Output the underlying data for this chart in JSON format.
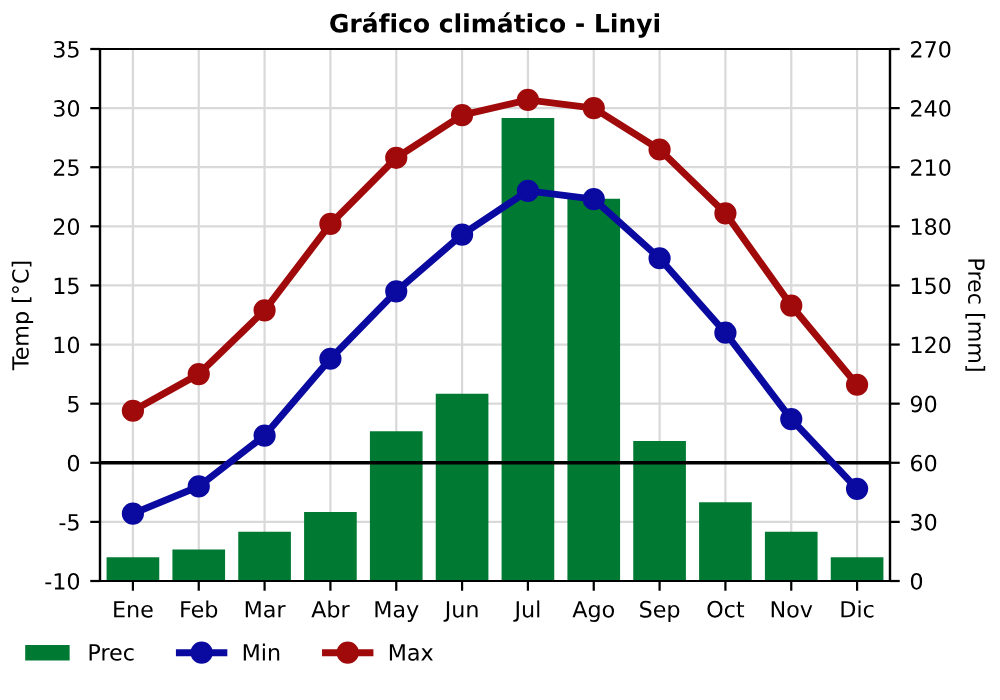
{
  "chart_data": {
    "type": "line",
    "title": "Gráfico climático - Linyi",
    "ylabel": "Temp [°C]",
    "y2label": "Prec [mm]",
    "categories": [
      "Ene",
      "Feb",
      "Mar",
      "Abr",
      "May",
      "Jun",
      "Jul",
      "Ago",
      "Sep",
      "Oct",
      "Nov",
      "Dic"
    ],
    "series": [
      {
        "name": "Prec",
        "type": "bar",
        "axis": "y2",
        "color": "#007a33",
        "values": [
          12,
          16,
          25,
          35,
          76,
          95,
          235,
          194,
          71,
          40,
          25,
          12
        ]
      },
      {
        "name": "Min",
        "color": "#0a0aa0",
        "values": [
          -4.3,
          -2,
          2.3,
          8.8,
          14.5,
          19.3,
          23,
          22.3,
          17.3,
          11,
          3.7,
          -2.2
        ]
      },
      {
        "name": "Max",
        "color": "#a00a0a",
        "values": [
          4.4,
          7.5,
          12.9,
          20.2,
          25.8,
          29.4,
          30.7,
          30,
          26.5,
          21.1,
          13.3,
          6.6
        ]
      }
    ],
    "ylim": [
      -10,
      35
    ],
    "yticks": [
      -10,
      -5,
      0,
      5,
      10,
      15,
      20,
      25,
      30,
      35
    ],
    "y2lim": [
      0,
      270
    ],
    "y2ticks": [
      0,
      30,
      60,
      90,
      120,
      150,
      180,
      210,
      240,
      270
    ],
    "ref_lines": [
      {
        "axis": "y",
        "value": 0,
        "color": "#000000"
      }
    ],
    "grid": true,
    "legend": "bottom",
    "marker": "circle"
  }
}
